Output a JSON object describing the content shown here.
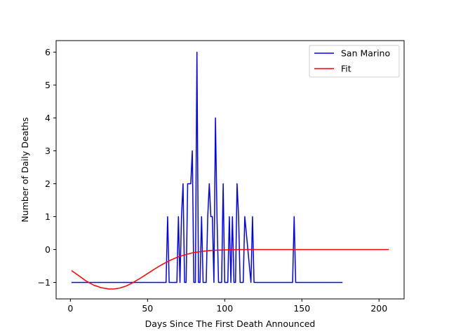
{
  "chart_data": {
    "type": "line",
    "title": "",
    "xlabel": "Days Since The First Death Announced",
    "ylabel": "Number of Daily Deaths",
    "xlim": [
      -9.25,
      216.25
    ],
    "ylim": [
      -1.5,
      6.35
    ],
    "xticks": [
      0,
      50,
      100,
      150,
      200
    ],
    "yticks": [
      -1,
      0,
      1,
      2,
      3,
      4,
      5,
      6
    ],
    "grid": false,
    "legend_position": "top-right",
    "series": [
      {
        "name": "San Marino",
        "color": "#0000ff",
        "x": [
          1,
          62,
          63,
          64,
          69,
          70,
          71,
          72,
          73,
          74,
          75,
          76,
          77,
          78,
          79,
          80,
          81,
          82,
          83,
          84,
          85,
          86,
          87,
          88,
          89,
          90,
          91,
          92,
          93,
          94,
          95,
          96,
          97,
          98,
          99,
          100,
          101,
          102,
          103,
          104,
          105,
          106,
          107,
          108,
          109,
          110,
          111,
          112,
          113,
          117,
          118,
          119,
          144,
          145,
          146,
          176
        ],
        "y": [
          -1,
          -1,
          1,
          -1,
          -1,
          1,
          -1,
          1,
          2,
          -1,
          -1,
          2,
          2,
          2,
          3,
          -1,
          -1,
          6,
          -1,
          -1,
          1,
          -1,
          -1,
          -1,
          1,
          2,
          1,
          1,
          -1,
          4,
          1,
          -1,
          -1,
          -1,
          2,
          -1,
          -1,
          -1,
          1,
          -1,
          1,
          -1,
          -1,
          2,
          1,
          -1,
          -1,
          -1,
          1,
          -1,
          1,
          -1,
          -1,
          1,
          -1,
          -1
        ]
      },
      {
        "name": "Fit",
        "color": "#ff0000",
        "x": [
          1,
          5,
          10,
          15,
          20,
          25,
          28,
          32,
          36,
          40,
          45,
          50,
          55,
          60,
          65,
          70,
          75,
          80,
          85,
          90,
          95,
          100,
          110,
          120,
          140,
          160,
          180,
          206
        ],
        "y": [
          -0.65,
          -0.78,
          -0.95,
          -1.08,
          -1.16,
          -1.2,
          -1.2,
          -1.17,
          -1.11,
          -1.02,
          -0.88,
          -0.73,
          -0.58,
          -0.44,
          -0.32,
          -0.22,
          -0.15,
          -0.09,
          -0.06,
          -0.03,
          -0.02,
          -0.01,
          0,
          0,
          0,
          0,
          0,
          0
        ]
      }
    ]
  }
}
